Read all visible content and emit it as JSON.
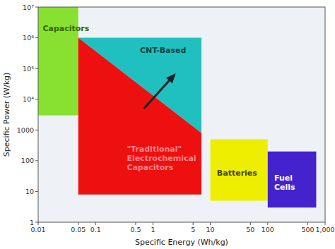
{
  "chart_data": {
    "type": "region",
    "xlabel": "Specific Energy (Wh/kg)",
    "ylabel": "Specific Power (W/kg)",
    "log": true,
    "xlim": [
      0.01,
      1000
    ],
    "ylim": [
      1,
      10000000
    ],
    "xticks": [
      0.01,
      0.05,
      0.1,
      0.5,
      1,
      5,
      10,
      50,
      100,
      500,
      {
        "value": 1000,
        "label": "1,000"
      }
    ],
    "yticks": [
      1,
      10,
      100,
      1000,
      {
        "value": 10000,
        "label": "10⁴"
      },
      {
        "value": 100000,
        "label": "10⁵"
      },
      {
        "value": 1000000,
        "label": "10⁶"
      },
      {
        "value": 10000000,
        "label": "10⁷"
      }
    ],
    "series": [
      {
        "name": "Capacitors",
        "color": "#88e030",
        "x": [
          0.01,
          0.05,
          0.05,
          0.01
        ],
        "values": [
          3000,
          3000,
          10000000,
          10000000
        ],
        "label_x": 0.012,
        "label_y": 2000000,
        "label_color": "#336600"
      },
      {
        "name": "CNT-Based",
        "color": "#20c0c0",
        "x": [
          0.05,
          7,
          7
        ],
        "values": [
          1000000,
          1000000,
          800
        ],
        "label_x": 1.5,
        "label_y": 400000,
        "label_color": "#004444"
      },
      {
        "name": "\"Traditional\"\nElectrochemical\nCapacitors",
        "color": "#ee1010",
        "x": [
          0.05,
          7,
          7,
          0.05
        ],
        "values": [
          8,
          8,
          800,
          1000000
        ],
        "label_x": 0.35,
        "label_y": 120,
        "label_color": "#ff8888"
      },
      {
        "name": "Batteries",
        "color": "#eeee00",
        "x": [
          10,
          100,
          100,
          10
        ],
        "values": [
          5,
          5,
          500,
          500
        ],
        "label_x": 13,
        "label_y": 40,
        "label_color": "#444400"
      },
      {
        "name": "Fuel\nCells",
        "color": "#4422cc",
        "x": [
          100,
          700,
          700,
          100
        ],
        "values": [
          3,
          3,
          200,
          200
        ],
        "label_x": 130,
        "label_y": 20,
        "label_color": "#ffffff"
      }
    ],
    "arrow": {
      "x": [
        0.7,
        2.5
      ],
      "y": [
        5000,
        70000
      ]
    }
  }
}
